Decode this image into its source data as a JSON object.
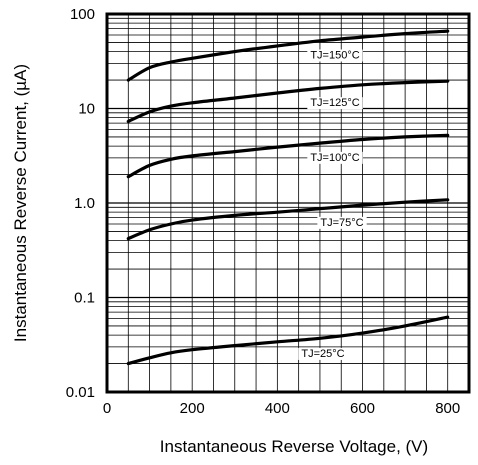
{
  "chart_data": {
    "type": "line",
    "title": "",
    "xlabel": "Instantaneous Reverse Voltage, (V)",
    "ylabel": "Instantaneous Reverse Current, (µA)",
    "x_scale": "linear",
    "y_scale": "log",
    "xlim": [
      0,
      850
    ],
    "ylim": [
      0.01,
      100
    ],
    "x_ticks": [
      "0",
      "200",
      "400",
      "600",
      "800"
    ],
    "y_ticks": [
      "0.01",
      "0.1",
      "1.0",
      "10",
      "100"
    ],
    "grid": true,
    "series": [
      {
        "name": "TJ=150°C",
        "label_text": "TJ=150°C",
        "x": [
          50,
          100,
          150,
          200,
          300,
          400,
          500,
          600,
          700,
          800
        ],
        "y": [
          20,
          27,
          31,
          34,
          40,
          46,
          52,
          57,
          62,
          66
        ]
      },
      {
        "name": "TJ=125°C",
        "label_text": "TJ=125°C",
        "x": [
          50,
          100,
          150,
          200,
          300,
          400,
          500,
          600,
          700,
          800
        ],
        "y": [
          7.3,
          9.2,
          10.6,
          11.5,
          12.9,
          14.6,
          16.3,
          17.8,
          18.8,
          19.5
        ]
      },
      {
        "name": "TJ=100°C",
        "label_text": "TJ=100°C",
        "x": [
          50,
          100,
          150,
          200,
          300,
          400,
          500,
          600,
          700,
          800
        ],
        "y": [
          1.9,
          2.5,
          2.9,
          3.15,
          3.5,
          3.9,
          4.3,
          4.7,
          5.0,
          5.2
        ]
      },
      {
        "name": "TJ=75°C",
        "label_text": "TJ=75°C",
        "x": [
          50,
          100,
          150,
          200,
          300,
          400,
          500,
          600,
          700,
          800
        ],
        "y": [
          0.42,
          0.52,
          0.6,
          0.66,
          0.74,
          0.8,
          0.87,
          0.95,
          1.02,
          1.08
        ]
      },
      {
        "name": "TJ=25°C",
        "label_text": "TJ=25°C",
        "x": [
          50,
          100,
          150,
          200,
          300,
          400,
          500,
          600,
          700,
          800
        ],
        "y": [
          0.02,
          0.023,
          0.026,
          0.028,
          0.031,
          0.034,
          0.037,
          0.042,
          0.05,
          0.062
        ]
      }
    ]
  }
}
